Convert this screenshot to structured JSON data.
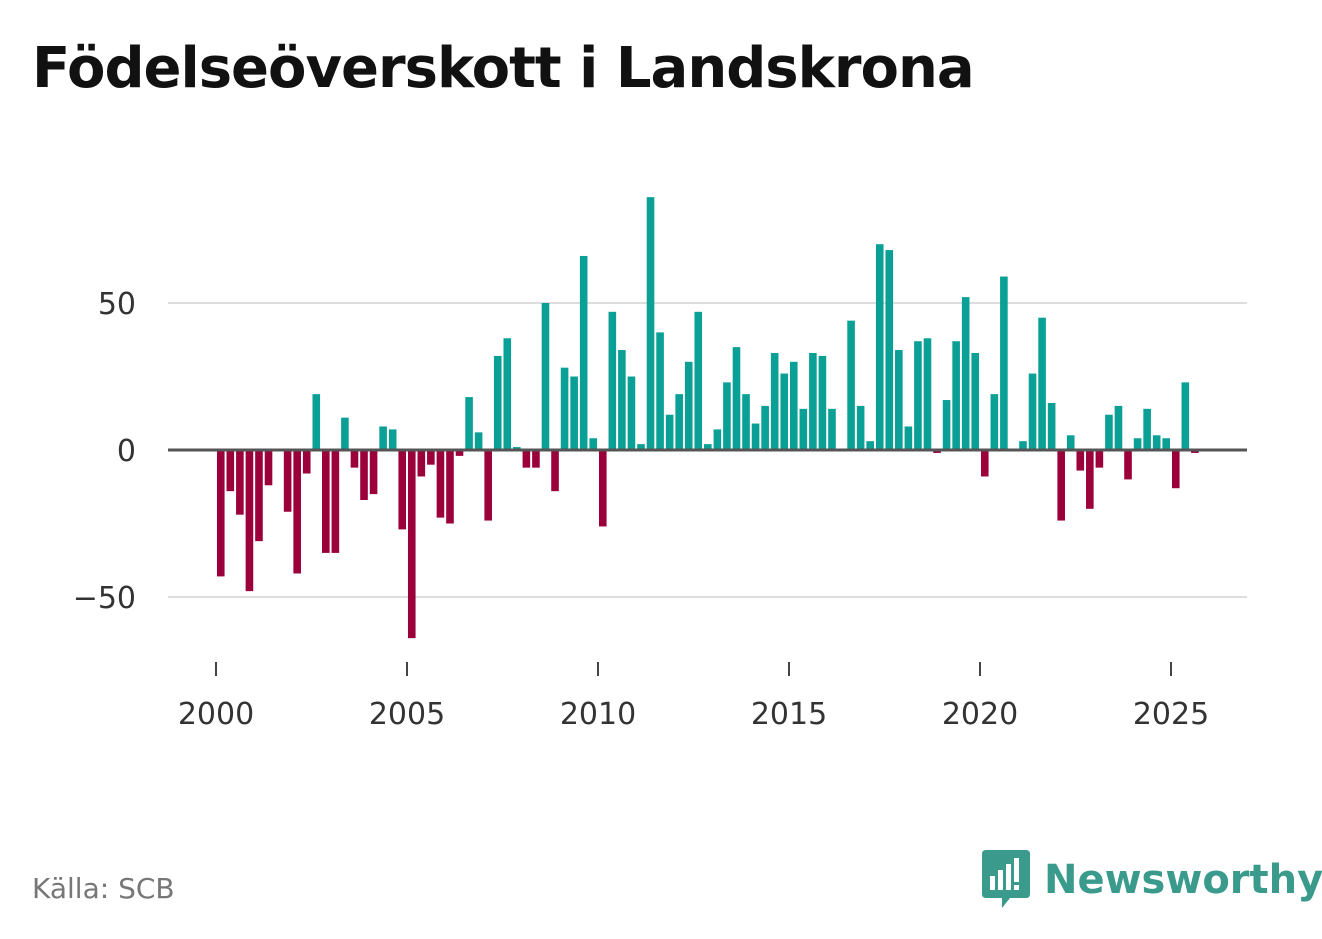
{
  "title": "Födelseöverskott i Landskrona",
  "source": "Källa: SCB",
  "brand": {
    "name": "Newsworthy",
    "icon": "newsworthy-logo-icon"
  },
  "colors": {
    "positive": "#0aa096",
    "negative": "#9b003b",
    "grid": "#dddddd",
    "zero_line": "#555555",
    "brand": "#3a9a8b"
  },
  "chart_data": {
    "type": "bar",
    "title": "Födelseöverskott i Landskrona",
    "xlabel": "",
    "ylabel": "",
    "frequency": "quarterly",
    "start": [
      2000,
      1
    ],
    "ylim": [
      -65,
      90
    ],
    "yticks": [
      -50,
      0,
      50
    ],
    "ytick_labels": [
      "−50",
      "0",
      "50"
    ],
    "xticks": [
      2000,
      2005,
      2010,
      2015,
      2020,
      2025
    ],
    "xtick_labels": [
      "2000",
      "2005",
      "2010",
      "2015",
      "2020",
      "2025"
    ],
    "grid": true,
    "values": [
      -43,
      -14,
      -22,
      -48,
      -31,
      -12,
      0,
      -21,
      -42,
      -8,
      19,
      -35,
      -35,
      11,
      -6,
      -17,
      -15,
      8,
      7,
      -27,
      -64,
      -9,
      -5,
      -23,
      -25,
      -2,
      18,
      6,
      -24,
      32,
      38,
      1,
      -6,
      -6,
      50,
      -14,
      28,
      25,
      66,
      4,
      -26,
      47,
      34,
      25,
      2,
      86,
      40,
      12,
      19,
      30,
      47,
      2,
      7,
      23,
      35,
      19,
      9,
      15,
      33,
      26,
      30,
      14,
      33,
      32,
      14,
      0,
      44,
      15,
      3,
      70,
      68,
      34,
      8,
      37,
      38,
      -1,
      17,
      37,
      52,
      33,
      -9,
      19,
      59,
      0,
      3,
      26,
      45,
      16,
      -24,
      5,
      -7,
      -20,
      -6,
      12,
      15,
      -10,
      4,
      14,
      5,
      4,
      -13,
      23,
      -1
    ]
  }
}
